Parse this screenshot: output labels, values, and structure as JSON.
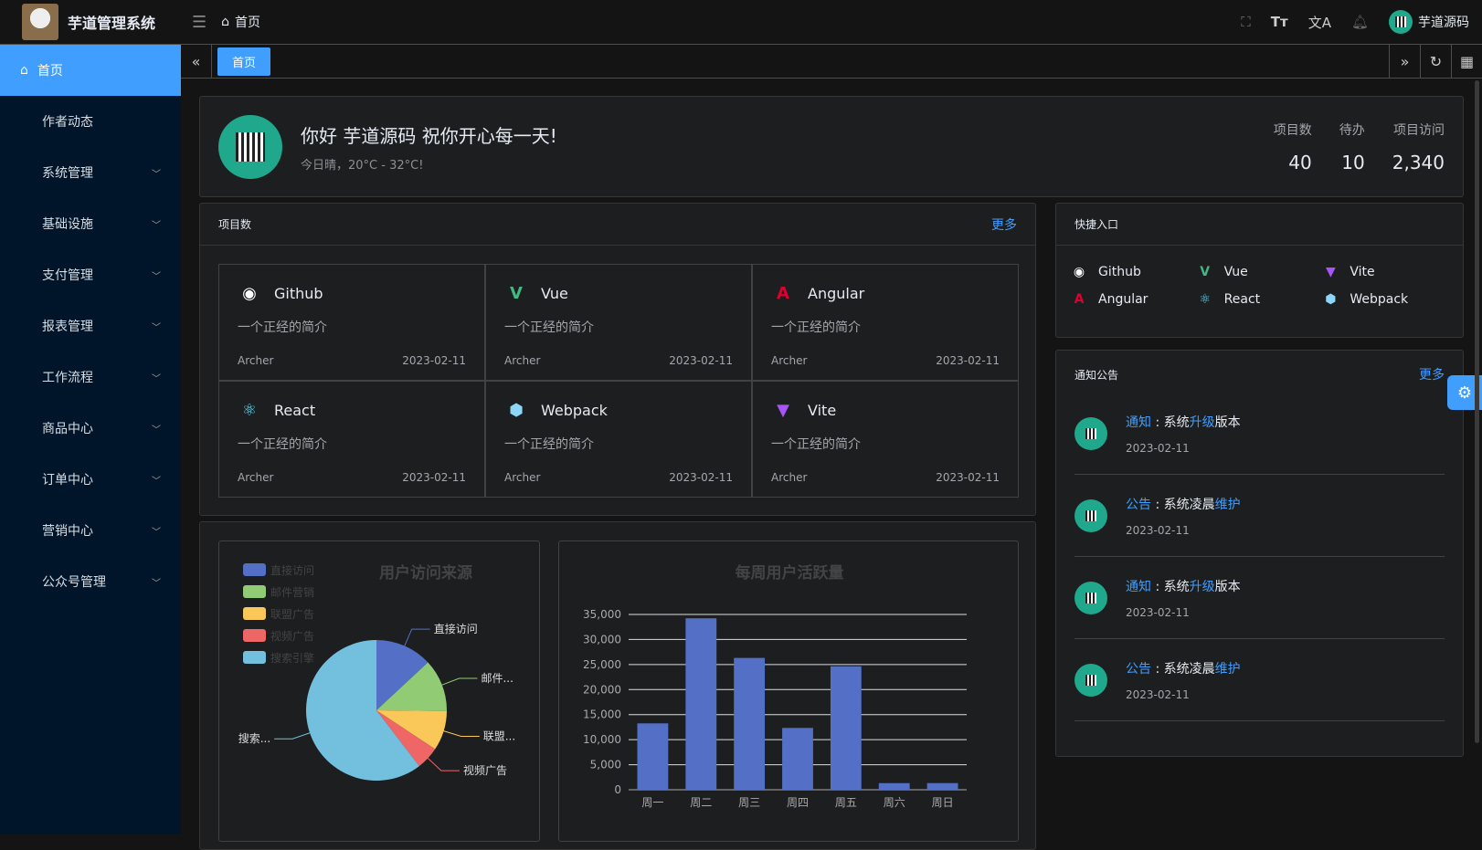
{
  "header": {
    "app_title": "芋道管理系统",
    "breadcrumb": "首页",
    "user": "芋道源码",
    "icons": [
      "fullscreen-icon",
      "font-size-icon",
      "translate-icon",
      "bell-icon"
    ]
  },
  "sidebar": {
    "items": [
      {
        "label": "首页",
        "active": true
      },
      {
        "label": "作者动态"
      },
      {
        "label": "系统管理",
        "expandable": true
      },
      {
        "label": "基础设施",
        "expandable": true
      },
      {
        "label": "支付管理",
        "expandable": true
      },
      {
        "label": "报表管理",
        "expandable": true
      },
      {
        "label": "工作流程",
        "expandable": true
      },
      {
        "label": "商品中心",
        "expandable": true
      },
      {
        "label": "订单中心",
        "expandable": true
      },
      {
        "label": "营销中心",
        "expandable": true
      },
      {
        "label": "公众号管理",
        "expandable": true
      }
    ]
  },
  "tabs": [
    {
      "label": "首页",
      "active": true
    }
  ],
  "welcome": {
    "greeting": "你好 芋道源码 祝你开心每一天!",
    "weather": "今日晴，20°C - 32°C!",
    "stats": [
      {
        "label": "项目数",
        "value": "40"
      },
      {
        "label": "待办",
        "value": "10"
      },
      {
        "label": "项目访问",
        "value": "2,340"
      }
    ]
  },
  "projects": {
    "title": "项目数",
    "more": "更多",
    "items": [
      {
        "name": "Github",
        "desc": "一个正经的简介",
        "author": "Archer",
        "date": "2023-02-11",
        "icon": "github-icon",
        "color": "#ffffff"
      },
      {
        "name": "Vue",
        "desc": "一个正经的简介",
        "author": "Archer",
        "date": "2023-02-11",
        "icon": "vue-icon",
        "color": "#42b883"
      },
      {
        "name": "Angular",
        "desc": "一个正经的简介",
        "author": "Archer",
        "date": "2023-02-11",
        "icon": "angular-icon",
        "color": "#dd0031"
      },
      {
        "name": "React",
        "desc": "一个正经的简介",
        "author": "Archer",
        "date": "2023-02-11",
        "icon": "react-icon",
        "color": "#61dafb"
      },
      {
        "name": "Webpack",
        "desc": "一个正经的简介",
        "author": "Archer",
        "date": "2023-02-11",
        "icon": "webpack-icon",
        "color": "#8dd6f9"
      },
      {
        "name": "Vite",
        "desc": "一个正经的简介",
        "author": "Archer",
        "date": "2023-02-11",
        "icon": "vite-icon",
        "color": "#a855f7"
      }
    ]
  },
  "quick": {
    "title": "快捷入口",
    "items": [
      {
        "name": "Github"
      },
      {
        "name": "Vue"
      },
      {
        "name": "Vite"
      },
      {
        "name": "Angular"
      },
      {
        "name": "React"
      },
      {
        "name": "Webpack"
      }
    ]
  },
  "notice": {
    "title": "通知公告",
    "more": "更多",
    "items": [
      {
        "type": "通知",
        "pre": "系统",
        "hl": "升级",
        "post": "版本",
        "date": "2023-02-11"
      },
      {
        "type": "公告",
        "pre": "系统凌晨",
        "hl": "维护",
        "post": "",
        "date": "2023-02-11"
      },
      {
        "type": "通知",
        "pre": "系统",
        "hl": "升级",
        "post": "版本",
        "date": "2023-02-11"
      },
      {
        "type": "公告",
        "pre": "系统凌晨",
        "hl": "维护",
        "post": "",
        "date": "2023-02-11"
      }
    ]
  },
  "chart_data": [
    {
      "type": "pie",
      "title": "用户访问来源",
      "legend_position": "top-left",
      "slices": [
        {
          "name": "直接访问",
          "label": "直接访问",
          "value": 335,
          "color": "#5470c6"
        },
        {
          "name": "邮件营销",
          "label": "邮件...",
          "value": 310,
          "color": "#91cc75"
        },
        {
          "name": "联盟广告",
          "label": "联盟...",
          "value": 234,
          "color": "#fac858"
        },
        {
          "name": "视频广告",
          "label": "视频广告",
          "value": 135,
          "color": "#ee6666"
        },
        {
          "name": "搜索引擎",
          "label": "搜索...",
          "value": 1548,
          "color": "#73c0de"
        }
      ]
    },
    {
      "type": "bar",
      "title": "每周用户活跃量",
      "categories": [
        "周一",
        "周二",
        "周三",
        "周四",
        "周五",
        "周六",
        "周日"
      ],
      "values": [
        13253,
        34235,
        26321,
        12340,
        24643,
        1322,
        1324
      ],
      "ylim": [
        0,
        35000
      ],
      "yticks": [
        "0",
        "5,000",
        "10,000",
        "15,000",
        "20,000",
        "25,000",
        "30,000",
        "35,000"
      ],
      "color": "#5470c6",
      "grid": true
    }
  ]
}
